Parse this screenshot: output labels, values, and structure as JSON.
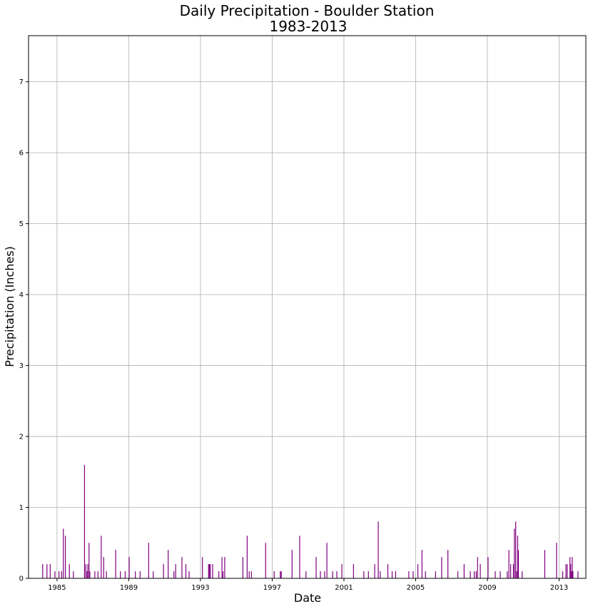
{
  "chart_data": {
    "type": "bar",
    "title_line1": "Daily Precipitation - Boulder Station",
    "title_line2": "1983-2013",
    "xlabel": "Date",
    "ylabel": "Precipitation (Inches)",
    "xlim": [
      "1983-06-01",
      "2014-06-30"
    ],
    "ylim": [
      0,
      7.65
    ],
    "yticks": [
      0,
      1,
      2,
      3,
      4,
      5,
      6,
      7
    ],
    "xticks": [
      "1985",
      "1989",
      "1993",
      "1997",
      "2001",
      "2005",
      "2009",
      "2013"
    ],
    "grid": true,
    "bar_color": "#800080",
    "series": [
      {
        "x": [
          "1984-03-15",
          "1984-06-10",
          "1984-08-15",
          "1984-11-20",
          "1985-02-10",
          "1985-04-05",
          "1985-05-10",
          "1985-06-20",
          "1985-09-10",
          "1985-12-01",
          "1986-07-15",
          "1986-08-10",
          "1986-09-05",
          "1986-09-20",
          "1986-10-15",
          "1986-11-01",
          "1987-02-10",
          "1987-04-15",
          "1987-06-20",
          "1987-08-10",
          "1987-10-05",
          "1988-04-10",
          "1988-07-15",
          "1988-10-20",
          "1989-01-10",
          "1989-05-15",
          "1989-08-20",
          "1990-02-10",
          "1990-05-15",
          "1990-12-10",
          "1991-03-15",
          "1991-07-10",
          "1991-08-15",
          "1991-12-20",
          "1992-03-10",
          "1992-05-15",
          "1993-02-10",
          "1993-06-15",
          "1993-07-01",
          "1993-07-20",
          "1993-09-05",
          "1994-01-10",
          "1994-03-15",
          "1994-04-05",
          "1994-05-10",
          "1995-05-15",
          "1995-08-10",
          "1995-09-20",
          "1995-11-05",
          "1996-08-20",
          "1997-02-10",
          "1997-06-15",
          "1997-07-05",
          "1998-02-10",
          "1998-07-15",
          "1998-11-20",
          "1999-06-15",
          "1999-09-10",
          "1999-12-05",
          "2000-01-20",
          "2000-05-15",
          "2000-08-10",
          "2000-11-20",
          "2001-07-15",
          "2002-02-10",
          "2002-05-15",
          "2002-09-20",
          "2002-12-01",
          "2003-01-10",
          "2003-06-15",
          "2003-09-10",
          "2003-11-20",
          "2004-08-15",
          "2004-11-10",
          "2005-02-15",
          "2005-05-10",
          "2005-07-20",
          "2006-02-10",
          "2006-06-15",
          "2006-10-20",
          "2007-05-10",
          "2007-09-15",
          "2008-01-20",
          "2008-04-10",
          "2008-05-20",
          "2008-06-15",
          "2008-08-10",
          "2009-01-15",
          "2009-06-10",
          "2009-09-20",
          "2010-02-10",
          "2010-03-15",
          "2010-04-20",
          "2010-06-15",
          "2010-07-05",
          "2010-08-01",
          "2010-08-20",
          "2010-09-10",
          "2010-09-25",
          "2010-12-10",
          "2012-03-15",
          "2012-11-10",
          "2013-03-15",
          "2013-05-20",
          "2013-06-15",
          "2013-08-10",
          "2013-08-25",
          "2013-09-12",
          "2013-09-25",
          "2013-10-10",
          "2014-01-20"
        ],
        "values": [
          0.2,
          0.2,
          0.2,
          0.1,
          0.1,
          0.1,
          0.7,
          0.6,
          0.2,
          0.1,
          1.6,
          0.2,
          0.1,
          0.2,
          0.5,
          0.1,
          0.1,
          0.1,
          0.6,
          0.3,
          0.1,
          0.4,
          0.1,
          0.1,
          0.3,
          0.1,
          0.1,
          0.5,
          0.1,
          0.2,
          0.4,
          0.1,
          0.2,
          0.3,
          0.2,
          0.1,
          0.3,
          0.2,
          0.2,
          0.2,
          0.2,
          0.1,
          0.3,
          0.1,
          0.3,
          0.3,
          0.6,
          0.1,
          0.1,
          0.5,
          0.1,
          0.1,
          0.1,
          0.4,
          0.6,
          0.1,
          0.3,
          0.1,
          0.1,
          0.5,
          0.1,
          0.1,
          0.2,
          0.2,
          0.1,
          0.1,
          0.2,
          0.8,
          0.1,
          0.2,
          0.1,
          0.1,
          0.1,
          0.1,
          0.2,
          0.4,
          0.1,
          0.1,
          0.3,
          0.4,
          0.1,
          0.2,
          0.1,
          0.1,
          0.1,
          0.3,
          0.2,
          0.3,
          0.1,
          0.1,
          0.1,
          0.4,
          0.2,
          0.2,
          0.7,
          0.8,
          0.1,
          0.6,
          0.4,
          0.1,
          0.4,
          0.5,
          0.1,
          0.2,
          0.2,
          0.3,
          0.2,
          0.1,
          0.3,
          0.1,
          0.1
        ]
      }
    ]
  }
}
